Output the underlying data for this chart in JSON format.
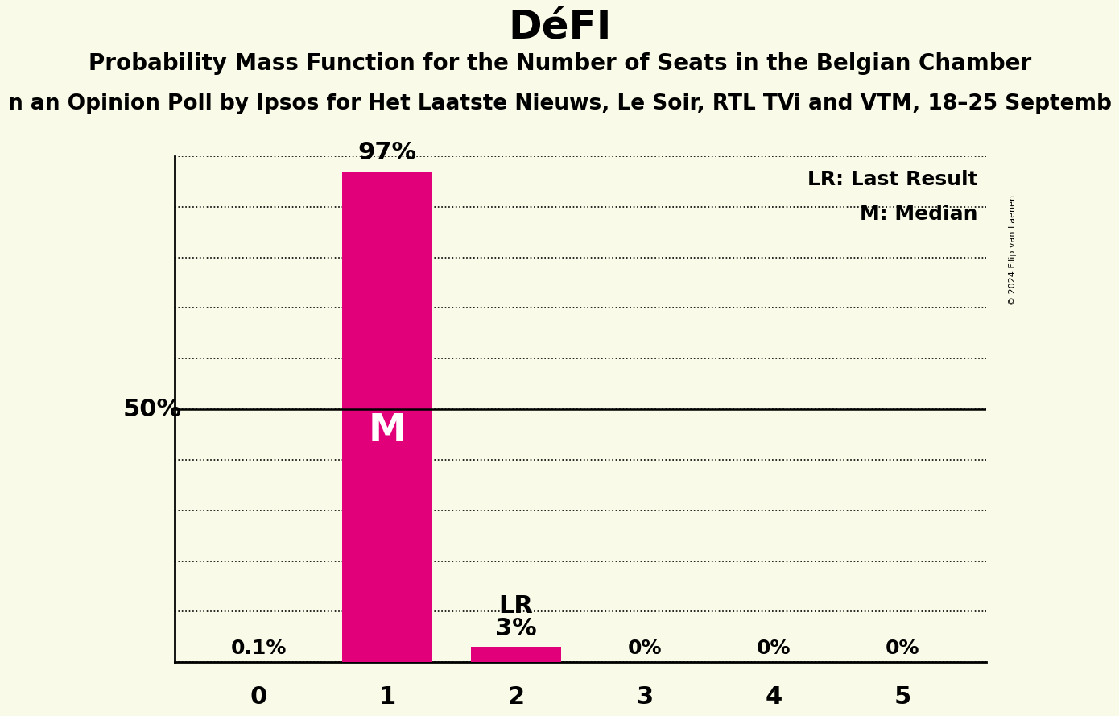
{
  "title": "DéFI",
  "subtitle": "Probability Mass Function for the Number of Seats in the Belgian Chamber",
  "sub_subtitle": "n an Opinion Poll by Ipsos for Het Laatste Nieuws, Le Soir, RTL TVi and VTM, 18–25 Septemb",
  "copyright": "© 2024 Filip van Laenen",
  "categories": [
    0,
    1,
    2,
    3,
    4,
    5
  ],
  "values": [
    0.001,
    0.97,
    0.03,
    0.0,
    0.0,
    0.0
  ],
  "bar_color": "#E2007A",
  "background_color": "#FAFAE8",
  "median_bar": 1,
  "lr_bar": 2,
  "label_texts": [
    "0.1%",
    "97%",
    "3%",
    "0%",
    "0%",
    "0%"
  ],
  "ylabel_50": "50%",
  "legend_lr": "LR: Last Result",
  "legend_m": "M: Median",
  "title_fontsize": 36,
  "subtitle_fontsize": 20,
  "sub_subtitle_fontsize": 19,
  "ylim": [
    0,
    1.0
  ],
  "yticks": [
    0.0,
    0.1,
    0.2,
    0.3,
    0.4,
    0.5,
    0.6,
    0.7,
    0.8,
    0.9,
    1.0
  ],
  "bar_width": 0.7,
  "xlim": [
    -0.65,
    5.65
  ]
}
